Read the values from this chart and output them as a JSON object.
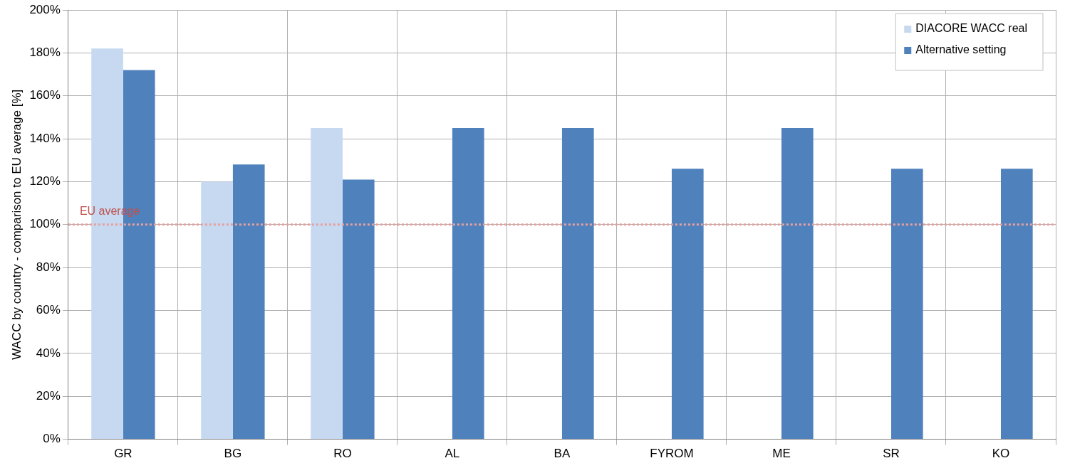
{
  "chart_data": {
    "type": "bar",
    "ylabel": "WACC by country - comparison to EU average [%]",
    "categories": [
      "GR",
      "BG",
      "RO",
      "AL",
      "BA",
      "FYROM",
      "ME",
      "SR",
      "KO"
    ],
    "series": [
      {
        "name": "DIACORE WACC real",
        "color": "#c6d9f1",
        "values": [
          182,
          120,
          145,
          null,
          null,
          null,
          null,
          null,
          null
        ]
      },
      {
        "name": "Alternative setting",
        "color": "#4f81bd",
        "values": [
          172,
          128,
          121,
          145,
          145,
          126,
          145,
          126,
          126
        ]
      }
    ],
    "ylim": [
      0,
      200
    ],
    "yticks": [
      {
        "value": 0,
        "label": "0%"
      },
      {
        "value": 20,
        "label": "20%"
      },
      {
        "value": 40,
        "label": "40%"
      },
      {
        "value": 60,
        "label": "60%"
      },
      {
        "value": 80,
        "label": "80%"
      },
      {
        "value": 100,
        "label": "100%"
      },
      {
        "value": 120,
        "label": "120%"
      },
      {
        "value": 140,
        "label": "140%"
      },
      {
        "value": 160,
        "label": "160%"
      },
      {
        "value": 180,
        "label": "180%"
      },
      {
        "value": 200,
        "label": "200%"
      }
    ],
    "grid": true,
    "legend": "top right",
    "ref_lines": [
      {
        "axis": "y",
        "value": 100,
        "label": "EU average",
        "color": "#e6a09e",
        "line_style": "dotted"
      }
    ]
  }
}
